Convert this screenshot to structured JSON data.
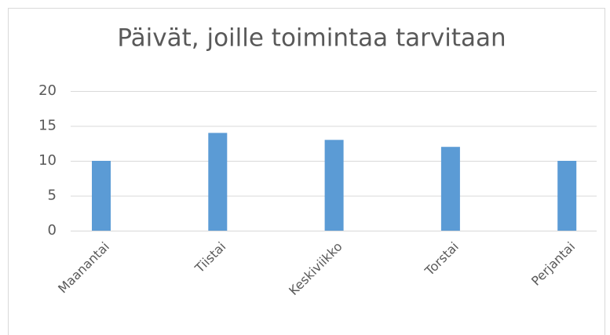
{
  "chart_data": {
    "type": "bar",
    "title": "Päivät, joille toimintaa tarvitaan",
    "categories": [
      "Maanantai",
      "Tiistai",
      "Keskiviikko",
      "Torstai",
      "Perjantai"
    ],
    "values": [
      10,
      14,
      13,
      12,
      10
    ],
    "color": "#5b9bd5",
    "ylim": [
      0,
      20
    ],
    "yticks": [
      0,
      5,
      10,
      15,
      20
    ],
    "grid": true
  }
}
